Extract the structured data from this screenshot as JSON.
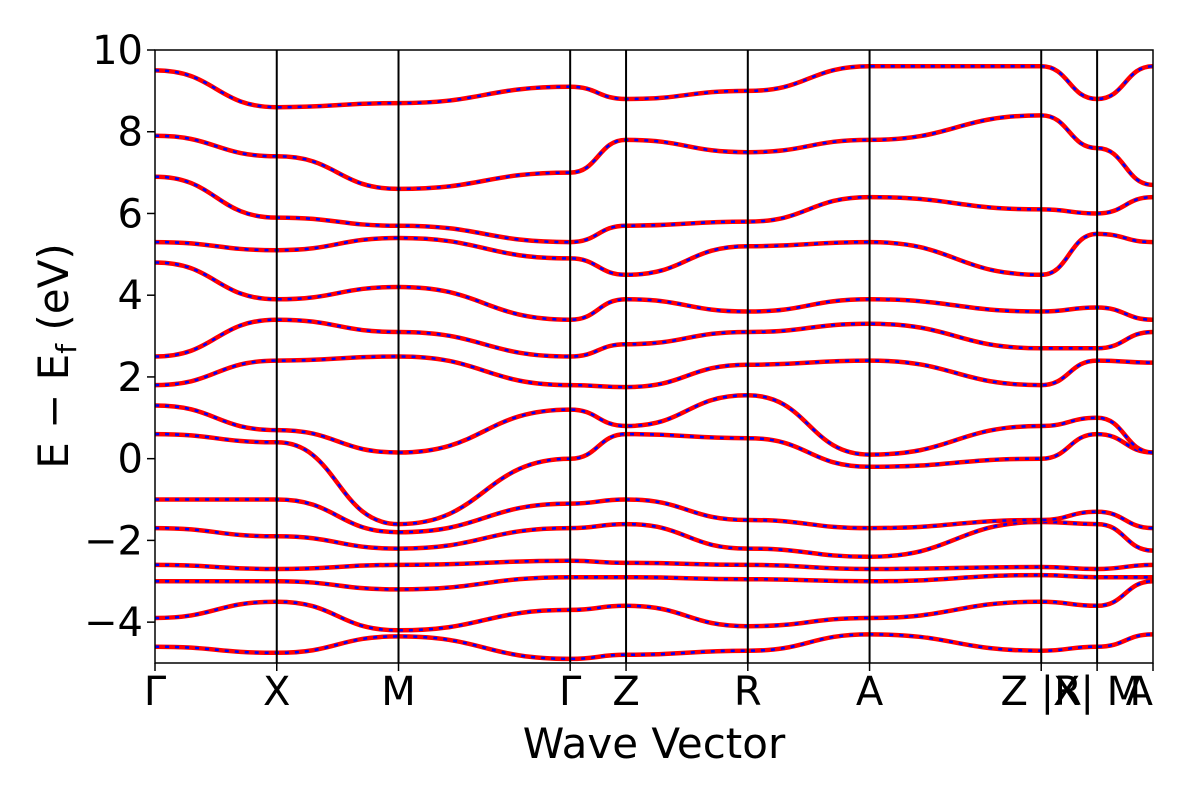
{
  "chart_data": {
    "type": "line",
    "title": "",
    "xlabel": "Wave Vector",
    "ylabel": "E − E_f (eV)",
    "ylabel_main": "E − E",
    "ylabel_sub": "f",
    "ylabel_unit": " (eV)",
    "ylim": [
      -5,
      10
    ],
    "yticks": [
      -4,
      -2,
      0,
      2,
      4,
      6,
      8,
      10
    ],
    "ytick_labels": [
      "−4",
      "−2",
      "0",
      "2",
      "4",
      "6",
      "8",
      "10"
    ],
    "x_range": [
      0,
      1
    ],
    "kpoints": [
      {
        "label": "Γ",
        "x": 0.0
      },
      {
        "label": "X",
        "x": 0.122
      },
      {
        "label": "M",
        "x": 0.244
      },
      {
        "label": "Γ",
        "x": 0.416
      },
      {
        "label": "Z",
        "x": 0.472
      },
      {
        "label": "R",
        "x": 0.594
      },
      {
        "label": "A",
        "x": 0.716
      },
      {
        "label": "Z |R",
        "x": 0.888
      },
      {
        "label": "X| M",
        "x": 0.944
      },
      {
        "label": "A",
        "x": 1.0
      }
    ],
    "grid": false,
    "legend": "none",
    "series": [
      {
        "style": "solid",
        "color": "#ff0000"
      },
      {
        "style": "dashed",
        "color": "#0000ff"
      }
    ],
    "bands": [
      {
        "x": [
          0.0,
          0.122,
          0.244,
          0.416,
          0.472,
          0.594,
          0.716,
          0.888,
          0.944,
          1.0
        ],
        "y": [
          -4.6,
          -4.75,
          -4.35,
          -4.9,
          -4.8,
          -4.7,
          -4.3,
          -4.7,
          -4.6,
          -4.3
        ]
      },
      {
        "x": [
          0.0,
          0.122,
          0.244,
          0.416,
          0.472,
          0.594,
          0.716,
          0.888,
          0.944,
          1.0
        ],
        "y": [
          -3.9,
          -3.5,
          -4.2,
          -3.7,
          -3.6,
          -4.1,
          -3.9,
          -3.5,
          -3.6,
          -3.0
        ]
      },
      {
        "x": [
          0.0,
          0.122,
          0.244,
          0.416,
          0.472,
          0.594,
          0.716,
          0.888,
          0.944,
          1.0
        ],
        "y": [
          -3.0,
          -3.0,
          -3.2,
          -2.9,
          -2.9,
          -2.95,
          -3.0,
          -2.85,
          -2.9,
          -2.9
        ]
      },
      {
        "x": [
          0.0,
          0.122,
          0.244,
          0.416,
          0.472,
          0.594,
          0.716,
          0.888,
          0.944,
          1.0
        ],
        "y": [
          -2.6,
          -2.7,
          -2.6,
          -2.5,
          -2.55,
          -2.6,
          -2.7,
          -2.65,
          -2.7,
          -2.6
        ]
      },
      {
        "x": [
          0.0,
          0.122,
          0.244,
          0.416,
          0.472,
          0.594,
          0.716,
          0.888,
          0.944,
          1.0
        ],
        "y": [
          -1.7,
          -1.9,
          -2.2,
          -1.7,
          -1.6,
          -2.2,
          -2.4,
          -1.55,
          -1.6,
          -2.25
        ]
      },
      {
        "x": [
          0.0,
          0.122,
          0.244,
          0.416,
          0.472,
          0.594,
          0.716,
          0.888,
          0.944,
          1.0
        ],
        "y": [
          -1.0,
          -1.0,
          -1.8,
          -1.1,
          -1.0,
          -1.5,
          -1.7,
          -1.5,
          -1.3,
          -1.7
        ]
      },
      {
        "x": [
          0.0,
          0.122,
          0.244,
          0.416,
          0.472,
          0.594,
          0.716,
          0.888,
          0.944,
          1.0
        ],
        "y": [
          0.6,
          0.4,
          -1.6,
          0.0,
          0.6,
          0.5,
          -0.2,
          0.0,
          0.6,
          0.15
        ]
      },
      {
        "x": [
          0.0,
          0.122,
          0.244,
          0.416,
          0.472,
          0.594,
          0.716,
          0.888,
          0.944,
          1.0
        ],
        "y": [
          1.3,
          0.7,
          0.15,
          1.2,
          0.8,
          1.55,
          0.1,
          0.8,
          1.0,
          0.15
        ]
      },
      {
        "x": [
          0.0,
          0.122,
          0.244,
          0.416,
          0.472,
          0.594,
          0.716,
          0.888,
          0.944,
          1.0
        ],
        "y": [
          1.8,
          2.4,
          2.5,
          1.8,
          1.75,
          2.3,
          2.4,
          1.8,
          2.4,
          2.35
        ]
      },
      {
        "x": [
          0.0,
          0.122,
          0.244,
          0.416,
          0.472,
          0.594,
          0.716,
          0.888,
          0.944,
          1.0
        ],
        "y": [
          2.5,
          3.4,
          3.1,
          2.5,
          2.8,
          3.1,
          3.3,
          2.7,
          2.7,
          3.1
        ]
      },
      {
        "x": [
          0.0,
          0.122,
          0.244,
          0.416,
          0.472,
          0.594,
          0.716,
          0.888,
          0.944,
          1.0
        ],
        "y": [
          4.8,
          3.9,
          4.2,
          3.4,
          3.9,
          3.6,
          3.9,
          3.6,
          3.7,
          3.4
        ]
      },
      {
        "x": [
          0.0,
          0.122,
          0.244,
          0.416,
          0.472,
          0.594,
          0.716,
          0.888,
          0.944,
          1.0
        ],
        "y": [
          5.3,
          5.1,
          5.4,
          4.9,
          4.5,
          5.2,
          5.3,
          4.5,
          5.5,
          5.3
        ]
      },
      {
        "x": [
          0.0,
          0.122,
          0.244,
          0.416,
          0.472,
          0.594,
          0.716,
          0.888,
          0.944,
          1.0
        ],
        "y": [
          6.9,
          5.9,
          5.7,
          5.3,
          5.7,
          5.8,
          6.4,
          6.1,
          6.0,
          6.4
        ]
      },
      {
        "x": [
          0.0,
          0.122,
          0.244,
          0.416,
          0.472,
          0.594,
          0.716,
          0.888,
          0.944,
          1.0
        ],
        "y": [
          7.9,
          7.4,
          6.6,
          7.0,
          7.8,
          7.5,
          7.8,
          8.4,
          7.6,
          6.7
        ]
      },
      {
        "x": [
          0.0,
          0.122,
          0.244,
          0.416,
          0.472,
          0.594,
          0.716,
          0.888,
          0.944,
          1.0
        ],
        "y": [
          9.5,
          8.6,
          8.7,
          9.1,
          8.8,
          9.0,
          9.6,
          9.6,
          8.8,
          9.6
        ]
      }
    ]
  }
}
